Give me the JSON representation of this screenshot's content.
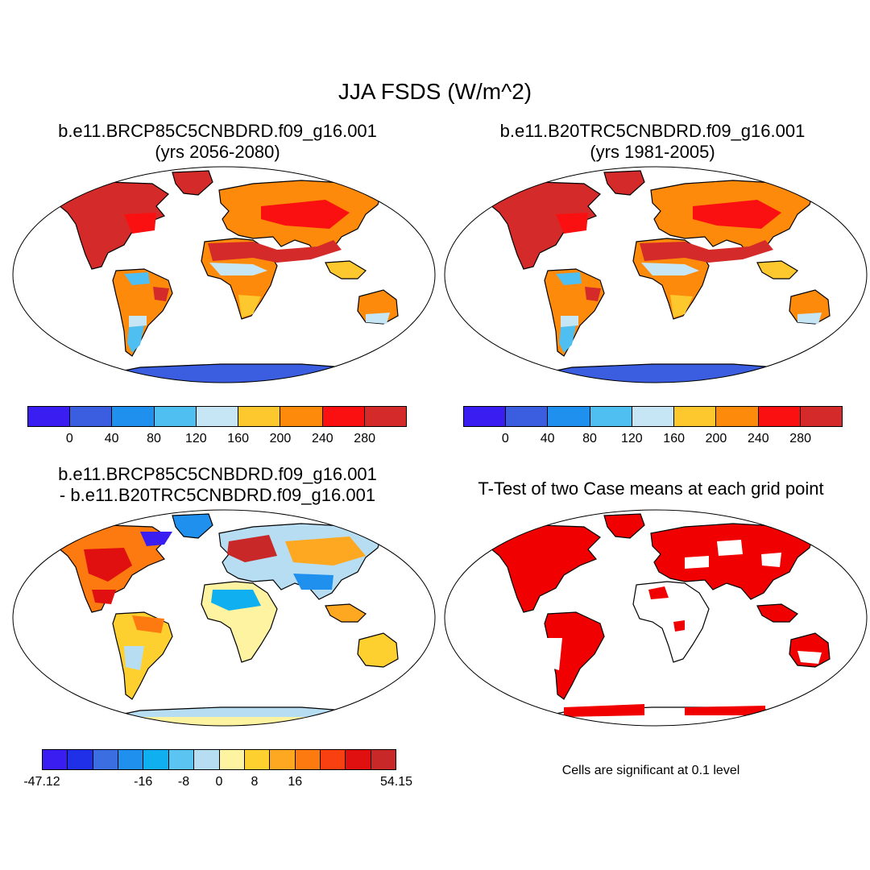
{
  "title": "JJA FSDS (W/m^2)",
  "panels": {
    "top_left": {
      "line1": "b.e11.BRCP85C5CNBDRD.f09_g16.001",
      "line2": "(yrs 2056-2080)"
    },
    "top_right": {
      "line1": "b.e11.B20TRC5CNBDRD.f09_g16.001",
      "line2": "(yrs 1981-2005)"
    },
    "bottom_left": {
      "line1": "b.e11.BRCP85C5CNBDRD.f09_g16.001",
      "line2": "- b.e11.B20TRC5CNBDRD.f09_g16.001"
    },
    "bottom_right": {
      "line1": "T-Test of two Case means at each grid point"
    }
  },
  "colors": {
    "abs": [
      "#3a1df0",
      "#3b5ee0",
      "#1f90ee",
      "#4fbef0",
      "#c6e6f5",
      "#fdc82e",
      "#fd8a0a",
      "#fa1010",
      "#d42a2a"
    ],
    "diff": [
      "#3a1df0",
      "#2030e8",
      "#3b6ee0",
      "#1f90ee",
      "#10b0f0",
      "#5cc4f0",
      "#b6ddf2",
      "#fdf3a0",
      "#fdd030",
      "#fda820",
      "#fd7a10",
      "#f84010",
      "#e01010",
      "#c82828"
    ],
    "sig": "#f00000",
    "antarctica_abs": "#3b5ee0",
    "antarctica_diff": "#b6ddf2",
    "antarctica_diff_edge": "#fdf3a0"
  },
  "colorbars": {
    "abs_ticks": [
      "0",
      "40",
      "80",
      "120",
      "160",
      "200",
      "240",
      "280"
    ],
    "diff_ticks": [
      "-47.12",
      "-16",
      "-8",
      "0",
      "8",
      "16",
      "54.15"
    ]
  },
  "note": "Cells are significant at 0.1 level"
}
